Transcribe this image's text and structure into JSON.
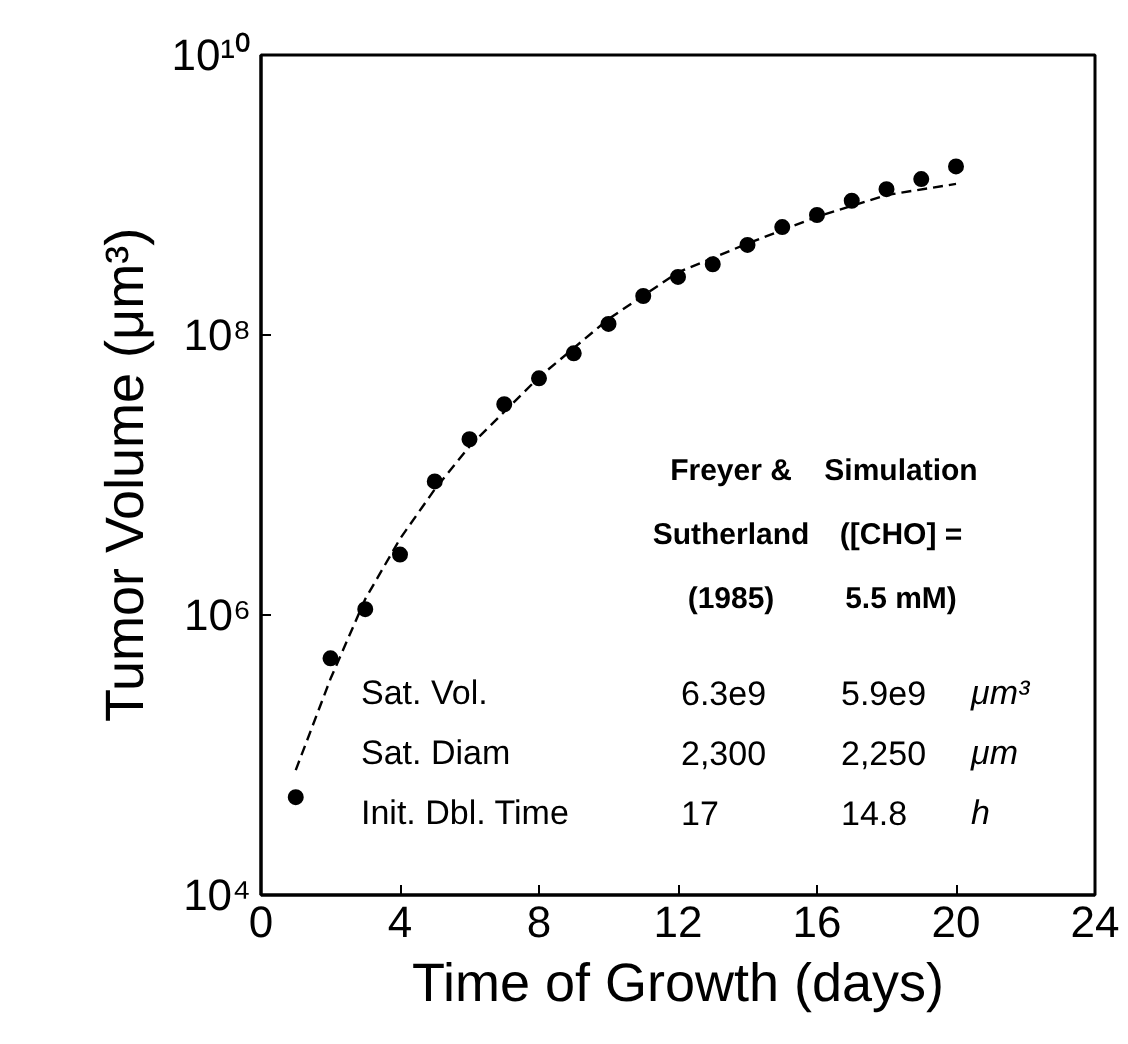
{
  "chart_data": {
    "type": "scatter",
    "xlabel": "Time of Growth (days)",
    "ylabel": "Tumor Volume (μm³)",
    "log": "y",
    "grid": false,
    "xlim": [
      0,
      24
    ],
    "xticks": [
      0,
      4,
      8,
      12,
      16,
      20,
      24
    ],
    "ylim": [
      10000.0,
      10000000000.0
    ],
    "yticks": [
      {
        "value": 10000.0,
        "label": "10⁴"
      },
      {
        "value": 1000000.0,
        "label": "10⁶"
      },
      {
        "value": 100000000.0,
        "label": "10⁸"
      },
      {
        "value": 10000000000.0,
        "label": "10¹⁰"
      }
    ],
    "series": [
      {
        "color": "#000000",
        "marker": "circle",
        "x": [
          1,
          2,
          3,
          4,
          5,
          6,
          7,
          8,
          9,
          10,
          11,
          12,
          13,
          14,
          15,
          16,
          17,
          18,
          19,
          20
        ],
        "values": [
          50000.0,
          490000.0,
          1100000.0,
          2700000.0,
          9000000.0,
          18000000.0,
          32000000.0,
          49000000.0,
          74000000.0,
          120000000.0,
          190000000.0,
          260000000.0,
          320000000.0,
          440000000.0,
          590000000.0,
          720000000.0,
          910000000.0,
          1100000000.0,
          1300000000.0,
          1600000000.0
        ]
      },
      {
        "type": "line",
        "color": "#000000",
        "line_style": "dashed",
        "marker": "none",
        "x": [
          1,
          2,
          3,
          4,
          5,
          6,
          8,
          10,
          12,
          14,
          16,
          18,
          20
        ],
        "values": [
          78000.0,
          350000.0,
          1300000.0,
          3500000.0,
          7900000.0,
          16000000.0,
          50000000.0,
          130000000.0,
          280000000.0,
          450000000.0,
          700000000.0,
          1000000000.0,
          1200000000.0
        ]
      }
    ],
    "annotations": [
      "Freyer &",
      "Sutherland",
      "(1985)",
      "Simulation",
      "([CHO] =",
      "5.5 mM)",
      "Sat. Vol.",
      "6.3e9",
      "5.9e9",
      "μm³",
      "Sat. Diam",
      "2,300",
      "2,250",
      "μm",
      "Init. Dbl. Time",
      "17",
      "14.8",
      "h"
    ]
  }
}
